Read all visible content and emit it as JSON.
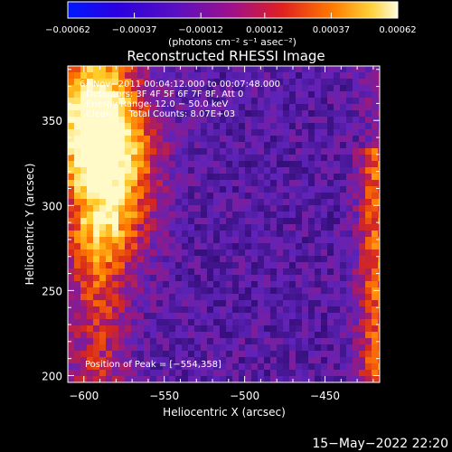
{
  "chart_data": {
    "type": "heatmap",
    "title": "Reconstructed RHESSI Image",
    "xlabel": "Heliocentric X (arcsec)",
    "ylabel": "Heliocentric Y (arcsec)",
    "xlim": [
      -610,
      -416
    ],
    "ylim": [
      196,
      382
    ],
    "x_ticks": [
      -600,
      -550,
      -500,
      -450
    ],
    "x_tick_labels": [
      "−600",
      "−550",
      "−500",
      "−450"
    ],
    "y_ticks": [
      200,
      250,
      300,
      350
    ],
    "y_tick_labels": [
      "200",
      "250",
      "300",
      "350"
    ],
    "colorbar": {
      "min": -0.00062,
      "max": 0.00062,
      "ticks": [
        -0.00062,
        -0.00037,
        -0.00012,
        0.00012,
        0.00037,
        0.00062
      ],
      "tick_labels": [
        "−0.00062",
        "−0.00037",
        "−0.00012",
        "0.00012",
        "0.00037",
        "0.00062"
      ],
      "unit_label": "(photons cm⁻² s⁻¹ asec⁻²)"
    },
    "annotations": [
      "6−Nov−2011 00:04:12.000 to 00:07:48.000",
      "Detectors: 3F 4F 5F 6F 7F 8F, Att 0",
      "Energy Range: 12.0 − 50.0 keV",
      "Clean      Total Counts: 8.07E+03"
    ],
    "peak_label": "Position of Peak = [−554,358]",
    "peak_position": [
      -554,
      358
    ]
  },
  "timestamp": "15−May−2022 22:20",
  "colors": {
    "background": "#000000",
    "axes": "#ffffff",
    "map_low": "#2a0a6a",
    "map_high": "#fff8a0"
  }
}
